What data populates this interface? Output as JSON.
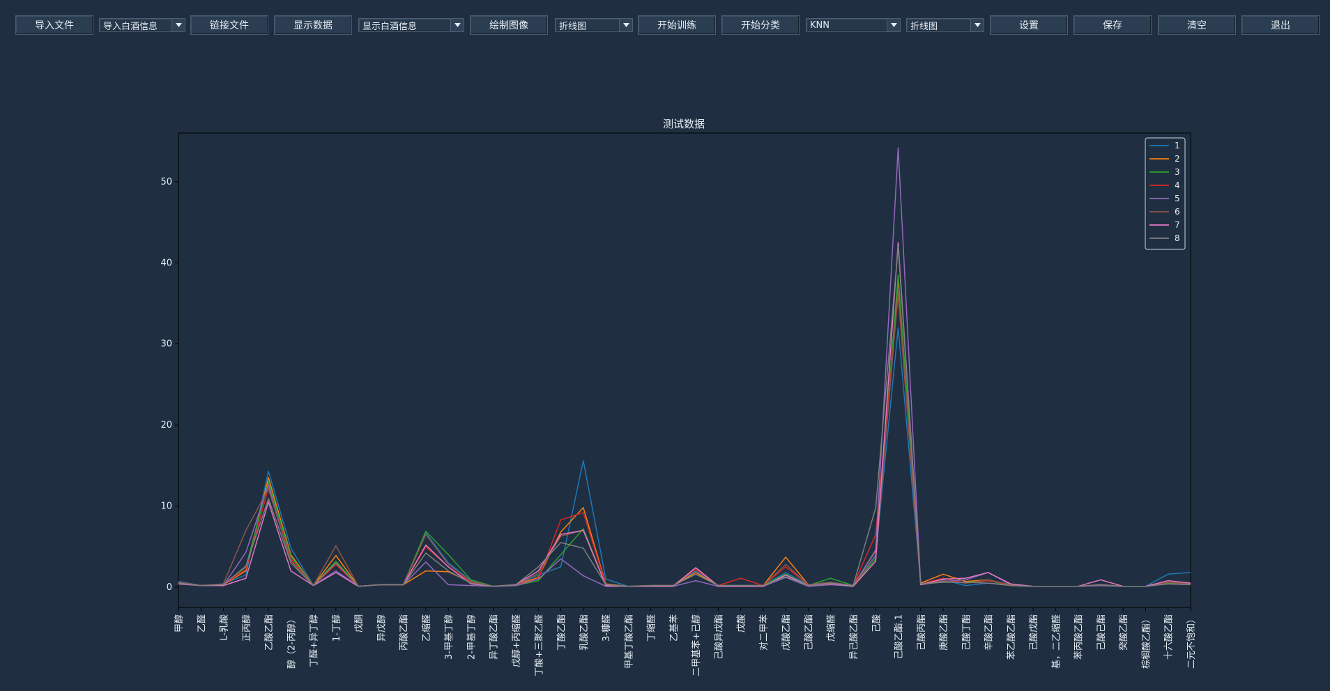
{
  "toolbar": {
    "items": [
      {
        "type": "button",
        "label": "导入文件"
      },
      {
        "type": "select",
        "value": "导入白酒信息"
      },
      {
        "type": "button",
        "label": "链接文件"
      },
      {
        "type": "button",
        "label": "显示数据"
      },
      {
        "type": "select",
        "value": "显示白酒信息"
      },
      {
        "type": "button",
        "label": "绘制图像"
      },
      {
        "type": "select",
        "value": "折线图"
      },
      {
        "type": "button",
        "label": "开始训练"
      },
      {
        "type": "button",
        "label": "开始分类"
      },
      {
        "type": "select",
        "value": "KNN"
      },
      {
        "type": "select",
        "value": "折线图"
      },
      {
        "type": "button",
        "label": "设置"
      },
      {
        "type": "button",
        "label": "保存"
      },
      {
        "type": "button",
        "label": "清空"
      },
      {
        "type": "button",
        "label": "退出"
      }
    ],
    "icons": {
      "select_arrow": "chevron-down-icon"
    }
  },
  "chart_data": {
    "type": "line",
    "title": "测试数据",
    "xlabel": "",
    "ylabel": "",
    "ylim": [
      -2.5,
      56
    ],
    "yticks": [
      0,
      10,
      20,
      30,
      40,
      50
    ],
    "grid": false,
    "legend_position": "top-right",
    "colors": {
      "background": "#1f2f41",
      "axes": "#000000",
      "text": "#e6edf3",
      "series": [
        "#1f77b4",
        "#ff7f0e",
        "#2ca02c",
        "#d62728",
        "#9467bd",
        "#8c564b",
        "#e377c2",
        "#7f7f7f"
      ]
    },
    "categories": [
      "甲醇",
      "乙醛",
      "L-乳酸",
      "正丙醇",
      "乙酸乙酯",
      "醇（2-丙醇）",
      "丁醛+异丁醇",
      "1-丁醇",
      "戊酮",
      "异戊醇",
      "丙酸乙酯",
      "乙缩醛",
      "3-甲基丁醇",
      "2-甲基丁醇",
      "异丁酸乙酯",
      "戊醇+丙缩醛",
      "丁酸+三聚乙醛",
      "丁酸乙酯",
      "乳酸乙酯",
      "3-糠醛",
      "甲基丁酸乙酯",
      "丁缩醛",
      "乙基苯",
      "二甲基苯+己醇",
      "己酸异戊酯",
      "戊酸",
      "对二甲苯",
      "戊酸乙酯",
      "己酸乙酯",
      "戊缩醛",
      "异己酸乙酯",
      "己酸",
      "己酸乙酯.1",
      "己酸丙酯",
      "庚酸乙酯",
      "己酸丁酯",
      "辛酸乙酯",
      "苯乙酸乙酯",
      "己酸戊酯",
      "基，二乙缩醛",
      "苯丙酸乙酯",
      "己酸己酯",
      "癸酸乙酯",
      "棕榈酸乙酯）",
      "十六酸乙酯",
      "二元不饱和）"
    ],
    "series": [
      {
        "name": "1",
        "values": [
          0.7,
          0.2,
          0.4,
          1.5,
          14.3,
          4.8,
          0.2,
          3.0,
          0.1,
          0.3,
          0.3,
          6.7,
          3.0,
          0.8,
          0.1,
          0.3,
          1.5,
          2.5,
          15.6,
          1.0,
          0.1,
          0.2,
          0.2,
          2.0,
          0.2,
          0.2,
          0.2,
          1.8,
          0.3,
          0.6,
          0.2,
          4.0,
          32.0,
          0.5,
          0.9,
          0.2,
          0.5,
          0.3,
          0.1,
          0.1,
          0.1,
          0.3,
          0.1,
          0.1,
          1.6,
          1.8
        ]
      },
      {
        "name": "2",
        "values": [
          0.6,
          0.2,
          0.3,
          2.0,
          13.5,
          4.0,
          0.2,
          3.9,
          0.1,
          0.3,
          0.3,
          2.0,
          1.9,
          0.6,
          0.1,
          0.3,
          1.2,
          6.8,
          9.8,
          0.4,
          0.1,
          0.2,
          0.2,
          1.8,
          0.2,
          0.2,
          0.2,
          3.7,
          0.3,
          0.4,
          0.2,
          4.5,
          38.0,
          0.5,
          1.6,
          0.7,
          0.9,
          0.2,
          0.1,
          0.1,
          0.1,
          0.3,
          0.1,
          0.1,
          0.6,
          0.4
        ]
      },
      {
        "name": "3",
        "values": [
          0.5,
          0.2,
          0.3,
          2.5,
          13.0,
          3.8,
          0.2,
          3.2,
          0.1,
          0.3,
          0.3,
          6.9,
          4.0,
          0.9,
          0.1,
          0.2,
          0.8,
          4.0,
          7.2,
          0.3,
          0.1,
          0.2,
          0.2,
          1.6,
          0.2,
          0.2,
          0.2,
          1.6,
          0.2,
          1.1,
          0.2,
          3.5,
          38.5,
          0.4,
          0.6,
          0.6,
          0.8,
          0.2,
          0.1,
          0.1,
          0.1,
          0.2,
          0.1,
          0.1,
          0.5,
          0.3
        ]
      },
      {
        "name": "4",
        "values": [
          0.5,
          0.2,
          0.3,
          2.2,
          12.2,
          3.5,
          0.2,
          2.8,
          0.1,
          0.3,
          0.3,
          5.0,
          2.5,
          0.6,
          0.1,
          0.3,
          1.0,
          8.3,
          9.2,
          0.3,
          0.1,
          0.2,
          0.2,
          2.2,
          0.2,
          1.1,
          0.2,
          2.5,
          0.3,
          0.5,
          0.2,
          6.5,
          36.0,
          0.4,
          1.1,
          0.5,
          0.8,
          0.3,
          0.1,
          0.1,
          0.1,
          0.3,
          0.1,
          0.1,
          0.6,
          0.5
        ]
      },
      {
        "name": "5",
        "values": [
          0.4,
          0.2,
          0.2,
          4.3,
          12.6,
          3.0,
          0.2,
          2.0,
          0.1,
          0.3,
          0.3,
          3.1,
          0.3,
          0.2,
          0.1,
          0.2,
          1.0,
          3.5,
          1.4,
          0.1,
          0.1,
          0.1,
          0.1,
          0.8,
          0.1,
          0.1,
          0.1,
          1.2,
          0.1,
          0.3,
          0.1,
          4.6,
          54.2,
          0.3,
          0.7,
          0.9,
          1.8,
          0.3,
          0.1,
          0.1,
          0.1,
          0.2,
          0.1,
          0.1,
          0.4,
          0.3
        ]
      },
      {
        "name": "6",
        "values": [
          0.6,
          0.2,
          0.4,
          7.0,
          12.1,
          3.3,
          0.2,
          5.1,
          0.1,
          0.3,
          0.3,
          6.5,
          2.8,
          0.7,
          0.1,
          0.3,
          1.7,
          6.3,
          7.0,
          0.3,
          0.1,
          0.2,
          0.2,
          2.4,
          0.2,
          0.2,
          0.2,
          2.8,
          0.3,
          0.6,
          0.2,
          3.8,
          36.5,
          0.4,
          0.8,
          0.5,
          0.9,
          0.3,
          0.1,
          0.1,
          0.1,
          0.3,
          0.1,
          0.1,
          0.6,
          0.4
        ]
      },
      {
        "name": "7",
        "values": [
          0.4,
          0.2,
          0.2,
          1.1,
          10.5,
          2.0,
          0.2,
          1.8,
          0.1,
          0.3,
          0.3,
          5.2,
          2.5,
          0.4,
          0.1,
          0.3,
          2.0,
          6.5,
          7.0,
          0.2,
          0.1,
          0.1,
          0.1,
          2.4,
          0.1,
          0.1,
          0.1,
          1.5,
          0.2,
          0.5,
          0.1,
          3.2,
          42.5,
          0.3,
          1.0,
          1.1,
          1.8,
          0.4,
          0.1,
          0.1,
          0.1,
          0.9,
          0.1,
          0.1,
          0.8,
          0.5
        ]
      },
      {
        "name": "8",
        "values": [
          0.5,
          0.2,
          0.3,
          2.6,
          10.9,
          3.0,
          0.2,
          3.0,
          0.1,
          0.3,
          0.3,
          4.2,
          2.0,
          0.5,
          0.1,
          0.3,
          2.5,
          5.5,
          4.8,
          0.3,
          0.1,
          0.2,
          0.2,
          1.6,
          0.2,
          0.2,
          0.2,
          1.3,
          0.2,
          0.5,
          0.2,
          9.8,
          42.0,
          0.4,
          0.6,
          0.6,
          0.5,
          0.2,
          0.1,
          0.1,
          0.1,
          0.3,
          0.1,
          0.1,
          0.4,
          0.3
        ]
      }
    ]
  }
}
